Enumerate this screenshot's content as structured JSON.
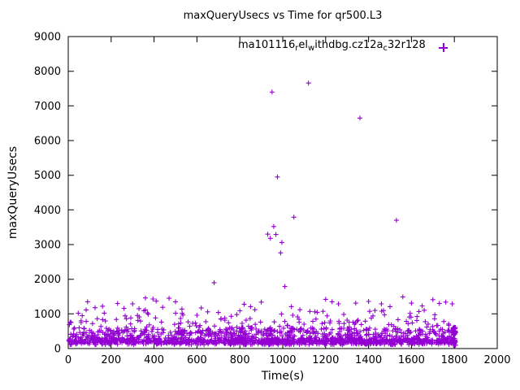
{
  "chart_data": {
    "type": "scatter",
    "title": "maxQueryUsecs vs Time for qr500.L3",
    "xlabel": "Time(s)",
    "ylabel": "maxQueryUsecs",
    "xlim": [
      0,
      2000
    ],
    "ylim": [
      0,
      9000
    ],
    "xticks": [
      0,
      200,
      400,
      600,
      800,
      1000,
      1200,
      1400,
      1600,
      1800,
      2000
    ],
    "yticks": [
      0,
      1000,
      2000,
      3000,
      4000,
      5000,
      6000,
      7000,
      8000,
      9000
    ],
    "grid": false,
    "legend": {
      "position": "top-center-inside",
      "label_plain": "ma101116_rel_withdbg.cz12a_c32r128",
      "segments": [
        {
          "text": "ma101116",
          "sub": false
        },
        {
          "text": "r",
          "sub": true
        },
        {
          "text": "el",
          "sub": false
        },
        {
          "text": "w",
          "sub": true
        },
        {
          "text": "ithdbg.cz12a",
          "sub": false
        },
        {
          "text": "c",
          "sub": true
        },
        {
          "text": "32r128",
          "sub": false
        }
      ],
      "marker": "plus"
    },
    "series": [
      {
        "name": "ma101116_rel_withdbg.cz12a_c32r128",
        "color": "#9400D3",
        "marker": "plus",
        "outlier_points": [
          [
            950,
            7400
          ],
          [
            1120,
            7660
          ],
          [
            1360,
            6650
          ],
          [
            975,
            4950
          ],
          [
            1052,
            3790
          ],
          [
            1530,
            3700
          ],
          [
            958,
            3520
          ],
          [
            930,
            3300
          ],
          [
            968,
            3290
          ],
          [
            942,
            3180
          ],
          [
            996,
            3060
          ],
          [
            990,
            2760
          ]
        ],
        "mid_points": [
          [
            90,
            1350
          ],
          [
            125,
            1180
          ],
          [
            160,
            1220
          ],
          [
            230,
            1300
          ],
          [
            260,
            1160
          ],
          [
            300,
            1290
          ],
          [
            330,
            1150
          ],
          [
            360,
            1460
          ],
          [
            395,
            1430
          ],
          [
            410,
            1370
          ],
          [
            440,
            1190
          ],
          [
            470,
            1450
          ],
          [
            500,
            1350
          ],
          [
            530,
            1140
          ],
          [
            600,
            960
          ],
          [
            620,
            1170
          ],
          [
            650,
            1060
          ],
          [
            680,
            1900
          ],
          [
            700,
            1040
          ],
          [
            730,
            880
          ],
          [
            760,
            930
          ],
          [
            800,
            1090
          ],
          [
            820,
            1280
          ],
          [
            850,
            1210
          ],
          [
            870,
            1120
          ],
          [
            900,
            1340
          ],
          [
            1010,
            1790
          ],
          [
            1040,
            1210
          ],
          [
            1080,
            1120
          ],
          [
            1150,
            1060
          ],
          [
            1200,
            1420
          ],
          [
            1230,
            1350
          ],
          [
            1260,
            1290
          ],
          [
            1300,
            820
          ],
          [
            1340,
            1310
          ],
          [
            1400,
            1360
          ],
          [
            1430,
            1100
          ],
          [
            1460,
            1290
          ],
          [
            1500,
            1210
          ],
          [
            1560,
            1490
          ],
          [
            1600,
            1310
          ],
          [
            1650,
            1230
          ],
          [
            1700,
            1410
          ],
          [
            1730,
            1300
          ],
          [
            1760,
            1340
          ],
          [
            1790,
            1290
          ]
        ],
        "dense_bands": [
          {
            "x0": 2,
            "x1": 1802,
            "y0": 110,
            "y1": 330,
            "count": 650
          },
          {
            "x0": 2,
            "x1": 1802,
            "y0": 170,
            "y1": 255,
            "count": 450
          },
          {
            "x0": 2,
            "x1": 1802,
            "y0": 340,
            "y1": 600,
            "count": 420
          },
          {
            "x0": 2,
            "x1": 1802,
            "y0": 600,
            "y1": 820,
            "count": 80
          },
          {
            "x0": 30,
            "x1": 1780,
            "y0": 820,
            "y1": 1120,
            "count": 50
          },
          {
            "x0": 1793,
            "x1": 1806,
            "y0": 90,
            "y1": 620,
            "count": 45
          }
        ]
      }
    ]
  }
}
